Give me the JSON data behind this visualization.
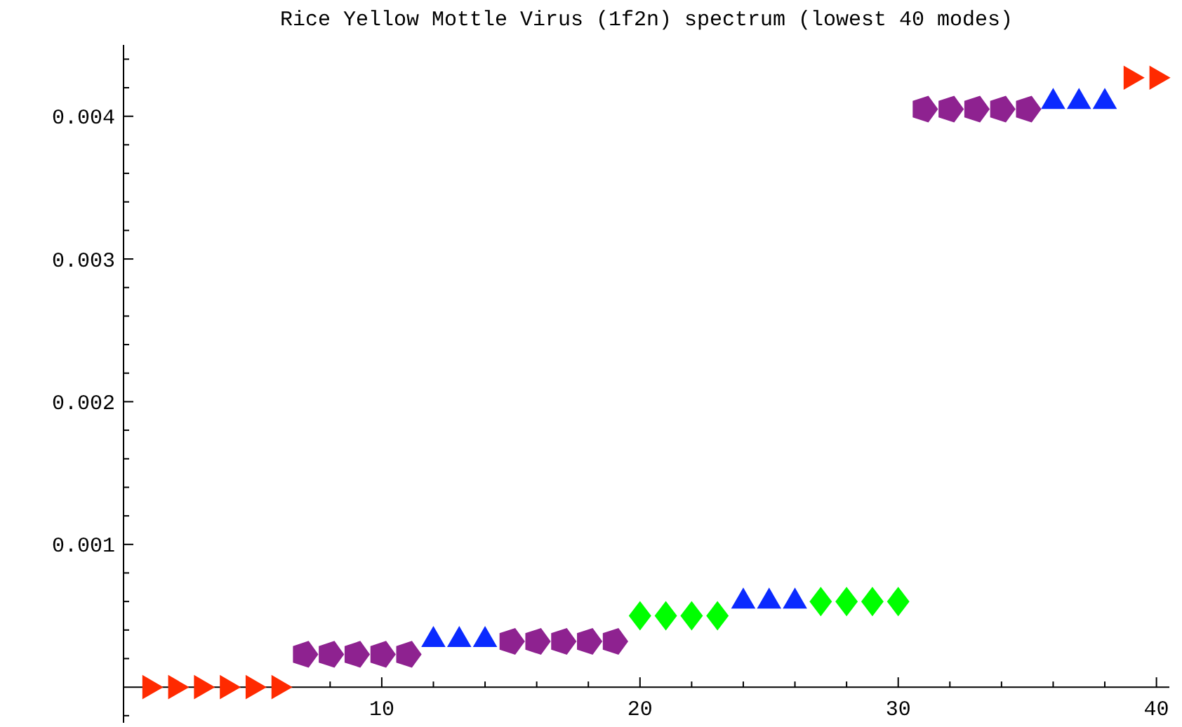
{
  "chart_data": {
    "type": "scatter",
    "title": "Rice Yellow Mottle Virus (1f2n) spectrum (lowest 40 modes)",
    "xlim": [
      0,
      40.5
    ],
    "ylim": [
      -0.00025,
      0.0045
    ],
    "xticks": [
      {
        "value": 2,
        "label": null
      },
      {
        "value": 4,
        "label": null
      },
      {
        "value": 6,
        "label": null
      },
      {
        "value": 8,
        "label": null
      },
      10,
      {
        "value": 12,
        "label": null
      },
      {
        "value": 14,
        "label": null
      },
      {
        "value": 16,
        "label": null
      },
      {
        "value": 18,
        "label": null
      },
      20,
      {
        "value": 22,
        "label": null
      },
      {
        "value": 24,
        "label": null
      },
      {
        "value": 26,
        "label": null
      },
      {
        "value": 28,
        "label": null
      },
      30,
      {
        "value": 32,
        "label": null
      },
      {
        "value": 34,
        "label": null
      },
      {
        "value": 36,
        "label": null
      },
      {
        "value": 38,
        "label": null
      },
      40
    ],
    "yticks": [
      {
        "value": -0.0002,
        "label": null
      },
      {
        "value": 0.0002,
        "label": null
      },
      {
        "value": 0.0004,
        "label": null
      },
      {
        "value": 0.0006,
        "label": null
      },
      {
        "value": 0.0008,
        "label": null
      },
      0.001,
      {
        "value": 0.0012,
        "label": null
      },
      {
        "value": 0.0014,
        "label": null
      },
      {
        "value": 0.0016,
        "label": null
      },
      {
        "value": 0.0018,
        "label": null
      },
      0.002,
      {
        "value": 0.0022,
        "label": null
      },
      {
        "value": 0.0024,
        "label": null
      },
      {
        "value": 0.0026,
        "label": null
      },
      {
        "value": 0.0028,
        "label": null
      },
      0.003,
      {
        "value": 0.0032,
        "label": null
      },
      {
        "value": 0.0034,
        "label": null
      },
      {
        "value": 0.0036,
        "label": null
      },
      {
        "value": 0.0038,
        "label": null
      },
      0.004,
      {
        "value": 0.0042,
        "label": null
      },
      {
        "value": 0.0044,
        "label": null
      }
    ],
    "grid": false,
    "series": [
      {
        "color": "#ff2a00",
        "marker": "triangle-right",
        "x": [
          1,
          2,
          3,
          4,
          5,
          6,
          39,
          40
        ],
        "values": [
          0,
          0,
          0,
          0,
          0,
          0,
          0.00427,
          0.00427
        ]
      },
      {
        "color": "#8e2290",
        "x": [
          7,
          8,
          9,
          10,
          11,
          15,
          16,
          17,
          18,
          19,
          31,
          32,
          33,
          34,
          35
        ],
        "values": [
          0.00023,
          0.00023,
          0.00023,
          0.00023,
          0.00023,
          0.00032,
          0.00032,
          0.00032,
          0.00032,
          0.00032,
          0.00405,
          0.00405,
          0.00405,
          0.00405,
          0.00405
        ]
      },
      {
        "color": "#0a2aff",
        "marker": "triangle",
        "x": [
          12,
          13,
          14,
          24,
          25,
          26,
          36,
          37,
          38
        ],
        "values": [
          0.00033,
          0.00033,
          0.00033,
          0.0006,
          0.0006,
          0.0006,
          0.0041,
          0.0041,
          0.0041
        ]
      },
      {
        "color": "#00ff00",
        "marker": "diamond",
        "x": [
          20,
          21,
          22,
          23,
          27,
          28,
          29,
          30
        ],
        "values": [
          0.0005,
          0.0005,
          0.0005,
          0.0005,
          0.0006,
          0.0006,
          0.0006,
          0.0006
        ]
      }
    ]
  }
}
